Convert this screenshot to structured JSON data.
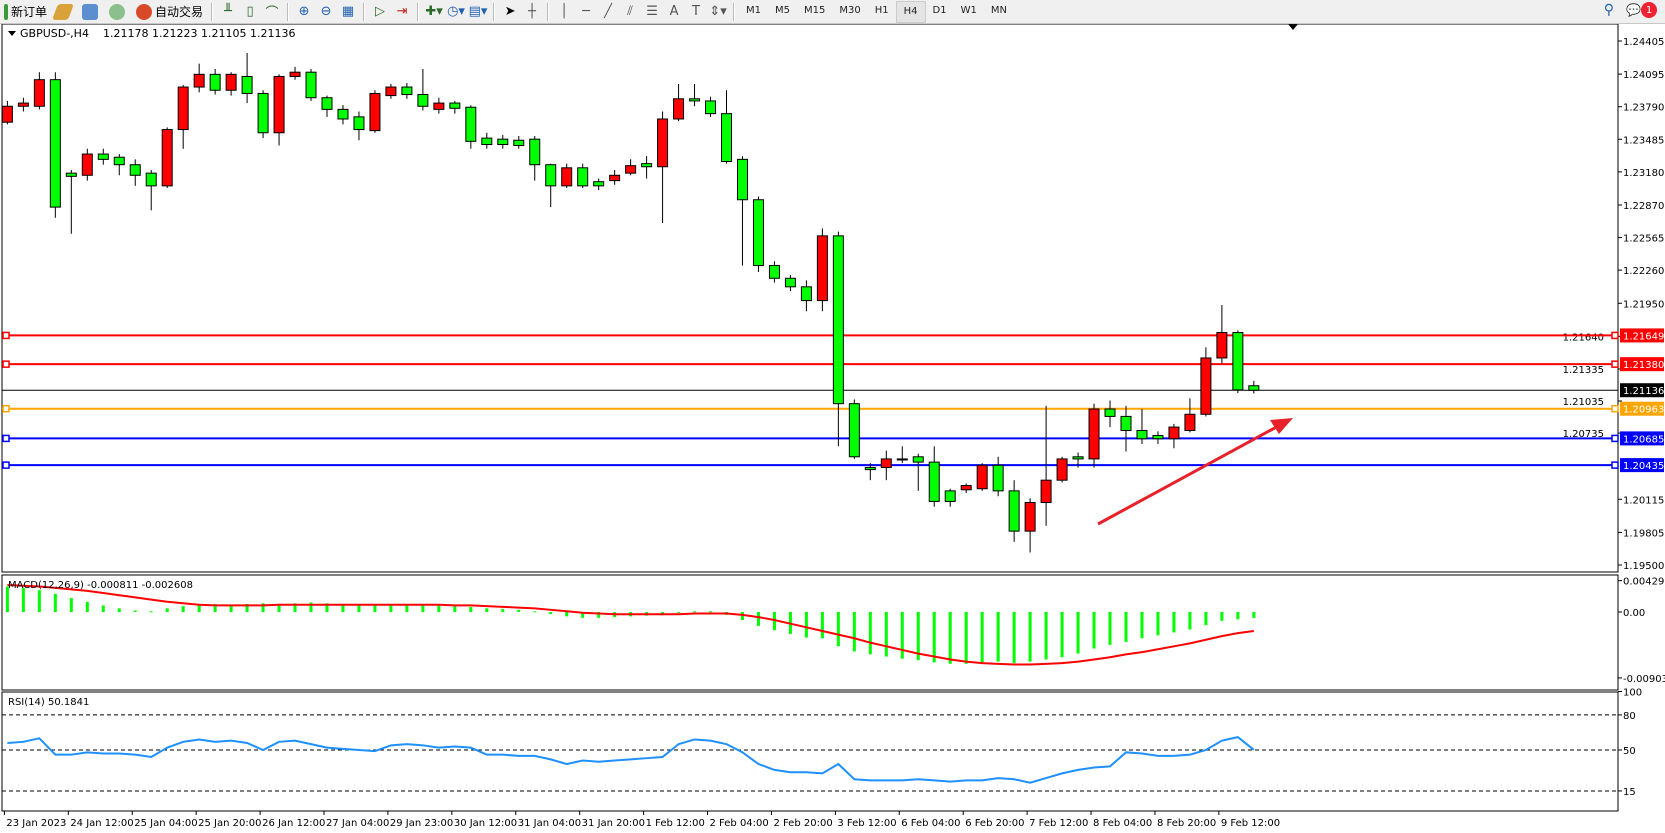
{
  "toolbar": {
    "new_order": "新订单",
    "auto_trading": "自动交易",
    "timeframes": [
      "M1",
      "M5",
      "M15",
      "M30",
      "H1",
      "H4",
      "D1",
      "W1",
      "MN"
    ],
    "active_timeframe": "H4",
    "notification_count": "1"
  },
  "chart_header": {
    "symbol": "GBPUSD-,H4",
    "ohlc": "1.21178 1.21223 1.21105 1.21136"
  },
  "chart_data": [
    {
      "type": "candlestick",
      "title": "GBPUSD-,H4  1.21178 1.21223 1.21105 1.21136",
      "up_color": "#ff0000",
      "down_color": "#00ff00",
      "ylim": [
        1.195,
        1.24405
      ],
      "y_ticks": [
        "1.24405",
        "1.24095",
        "1.23790",
        "1.23485",
        "1.23180",
        "1.22870",
        "1.22565",
        "1.22260",
        "1.21950",
        "1.21640",
        "1.21335",
        "1.21035",
        "1.20735",
        "1.20115",
        "1.19805",
        "1.19500"
      ],
      "x_tick_labels": [
        "23 Jan 2023",
        "24 Jan 12:00",
        "25 Jan 04:00",
        "25 Jan 20:00",
        "26 Jan 12:00",
        "27 Jan 04:00",
        "29 Jan 23:00",
        "30 Jan 12:00",
        "31 Jan 04:00",
        "31 Jan 20:00",
        "1 Feb 12:00",
        "2 Feb 04:00",
        "2 Feb 20:00",
        "3 Feb 12:00",
        "6 Feb 04:00",
        "6 Feb 20:00",
        "7 Feb 12:00",
        "8 Feb 04:00",
        "8 Feb 20:00",
        "9 Feb 12:00"
      ],
      "x_tick_every_n_candles": 4,
      "ohlc": [
        [
          1.23645,
          1.23844,
          1.23625,
          1.23794
        ],
        [
          1.23794,
          1.23874,
          1.23745,
          1.23824
        ],
        [
          1.23794,
          1.24113,
          1.23765,
          1.24043
        ],
        [
          1.24043,
          1.24113,
          1.2275,
          1.2285
        ],
        [
          1.23168,
          1.23198,
          1.22601,
          1.23138
        ],
        [
          1.23148,
          1.23397,
          1.23098,
          1.23347
        ],
        [
          1.23347,
          1.23397,
          1.23247,
          1.23297
        ],
        [
          1.23317,
          1.23347,
          1.23148,
          1.23247
        ],
        [
          1.23247,
          1.23297,
          1.23049,
          1.23148
        ],
        [
          1.23168,
          1.23198,
          1.2282,
          1.23049
        ],
        [
          1.23049,
          1.23596,
          1.23029,
          1.23576
        ],
        [
          1.23576,
          1.23994,
          1.23396,
          1.23974
        ],
        [
          1.23974,
          1.24193,
          1.23924,
          1.24093
        ],
        [
          1.24093,
          1.24143,
          1.23904,
          1.23944
        ],
        [
          1.23944,
          1.24113,
          1.23894,
          1.24093
        ],
        [
          1.24073,
          1.24293,
          1.23824,
          1.23914
        ],
        [
          1.23914,
          1.23944,
          1.23496,
          1.23546
        ],
        [
          1.23546,
          1.24093,
          1.23427,
          1.24073
        ],
        [
          1.24073,
          1.24163,
          1.24043,
          1.24113
        ],
        [
          1.24113,
          1.24143,
          1.23844,
          1.23874
        ],
        [
          1.23874,
          1.23894,
          1.23695,
          1.23765
        ],
        [
          1.23765,
          1.23805,
          1.23625,
          1.23675
        ],
        [
          1.23695,
          1.23745,
          1.23476,
          1.23576
        ],
        [
          1.23566,
          1.23944,
          1.23546,
          1.23914
        ],
        [
          1.23894,
          1.24003,
          1.23864,
          1.23974
        ],
        [
          1.23974,
          1.24013,
          1.23864,
          1.23904
        ],
        [
          1.23904,
          1.24143,
          1.23755,
          1.23794
        ],
        [
          1.23765,
          1.23874,
          1.23725,
          1.23824
        ],
        [
          1.23824,
          1.23844,
          1.23725,
          1.23775
        ],
        [
          1.23785,
          1.23804,
          1.23397,
          1.23466
        ],
        [
          1.23496,
          1.23546,
          1.23397,
          1.23436
        ],
        [
          1.23486,
          1.23526,
          1.23397,
          1.23436
        ],
        [
          1.23476,
          1.23516,
          1.23397,
          1.23427
        ],
        [
          1.23486,
          1.23516,
          1.23098,
          1.23247
        ],
        [
          1.23247,
          1.23257,
          1.2285,
          1.23049
        ],
        [
          1.23049,
          1.23257,
          1.23029,
          1.23218
        ],
        [
          1.23218,
          1.23257,
          1.23029,
          1.23049
        ],
        [
          1.23088,
          1.23118,
          1.23009,
          1.23049
        ],
        [
          1.23098,
          1.23198,
          1.23059,
          1.23148
        ],
        [
          1.23168,
          1.23298,
          1.23148,
          1.23238
        ],
        [
          1.23257,
          1.23327,
          1.23118,
          1.23228
        ],
        [
          1.23228,
          1.23745,
          1.22701,
          1.23675
        ],
        [
          1.23675,
          1.24003,
          1.23655,
          1.23864
        ],
        [
          1.23864,
          1.24003,
          1.23794,
          1.23844
        ],
        [
          1.23844,
          1.23884,
          1.23695,
          1.23725
        ],
        [
          1.23725,
          1.23944,
          1.23257,
          1.23277
        ],
        [
          1.23297,
          1.23327,
          1.22303,
          1.22919
        ],
        [
          1.22919,
          1.22949,
          1.22243,
          1.22303
        ],
        [
          1.22303,
          1.22343,
          1.22144,
          1.22184
        ],
        [
          1.22184,
          1.22214,
          1.22064,
          1.22104
        ],
        [
          1.22104,
          1.22164,
          1.21875,
          1.21975
        ],
        [
          1.21975,
          1.22651,
          1.21875,
          1.22581
        ],
        [
          1.22581,
          1.22621,
          1.20611,
          1.2101
        ],
        [
          1.2101,
          1.2105,
          1.20493,
          1.20513
        ],
        [
          1.20413,
          1.20453,
          1.20294,
          1.20393
        ],
        [
          1.20413,
          1.20571,
          1.20294,
          1.20493
        ],
        [
          1.20493,
          1.20611,
          1.20453,
          1.20483
        ],
        [
          1.20513,
          1.20542,
          1.20194,
          1.20463
        ],
        [
          1.20463,
          1.20611,
          1.20045,
          1.20095
        ],
        [
          1.20194,
          1.20214,
          1.20045,
          1.20095
        ],
        [
          1.20204,
          1.20264,
          1.20174,
          1.20244
        ],
        [
          1.20214,
          1.20453,
          1.20194,
          1.20433
        ],
        [
          1.20433,
          1.20513,
          1.20144,
          1.20194
        ],
        [
          1.20194,
          1.20294,
          1.19717,
          1.19817
        ],
        [
          1.19817,
          1.20125,
          1.19617,
          1.20085
        ],
        [
          1.20085,
          1.2099,
          1.19867,
          1.20294
        ],
        [
          1.20294,
          1.20513,
          1.20274,
          1.20493
        ],
        [
          1.20513,
          1.20553,
          1.20413,
          1.20493
        ],
        [
          1.20493,
          1.2101,
          1.20413,
          1.2096
        ],
        [
          1.2096,
          1.2104,
          1.20791,
          1.20891
        ],
        [
          1.20891,
          1.2099,
          1.20562,
          1.20759
        ],
        [
          1.20759,
          1.2096,
          1.20632,
          1.20682
        ],
        [
          1.20712,
          1.20751,
          1.20632,
          1.20682
        ],
        [
          1.20682,
          1.20821,
          1.20593,
          1.20791
        ],
        [
          1.20759,
          1.2106,
          1.20741,
          1.20911
        ],
        [
          1.20911,
          1.21538,
          1.20891,
          1.21438
        ],
        [
          1.21438,
          1.21934,
          1.21389,
          1.21676
        ],
        [
          1.21676,
          1.21696,
          1.21109,
          1.21139
        ],
        [
          1.21178,
          1.21223,
          1.21105,
          1.21136
        ]
      ],
      "current_price": {
        "value": 1.21136,
        "label": "1.21136",
        "color": "#000000"
      },
      "horizontal_lines": [
        {
          "value": 1.21649,
          "label": "1.21649",
          "color": "#ff0000"
        },
        {
          "value": 1.2138,
          "label": "1.21380",
          "color": "#ff0000"
        },
        {
          "value": 1.20963,
          "label": "1.20963",
          "color": "#ffa500"
        },
        {
          "value": 1.20685,
          "label": "1.20685",
          "color": "#0000ff"
        },
        {
          "value": 1.20435,
          "label": "1.20435",
          "color": "#0000ff"
        }
      ],
      "annotation": {
        "type": "arrow",
        "color": "#e8202a",
        "direction": "up-right"
      }
    },
    {
      "type": "bar+line",
      "title": "MACD(12,26,9) -0.000811 -0.002608",
      "ylim": [
        -0.009034,
        0.00429
      ],
      "y_ticks": [
        "0.00429",
        "0.00",
        "-0.009034"
      ],
      "histogram_color": "#00ff00",
      "signal_color": "#ff0000",
      "histogram": [
        0.0035,
        0.0033,
        0.003,
        0.0025,
        0.0019,
        0.0014,
        0.0009,
        0.0005,
        0.0002,
        0.0001,
        0.0005,
        0.0008,
        0.001,
        0.0011,
        0.001,
        0.0011,
        0.0012,
        0.0011,
        0.0012,
        0.0013,
        0.0012,
        0.0011,
        0.001,
        0.001,
        0.0011,
        0.0011,
        0.001,
        0.0009,
        0.0008,
        0.0007,
        0.0005,
        0.0004,
        0.0003,
        0.0001,
        -0.0003,
        -0.0006,
        -0.0008,
        -0.0008,
        -0.0007,
        -0.0006,
        -0.0005,
        -0.0003,
        -0.0001,
        0.0001,
        0.0001,
        -0.0004,
        -0.0011,
        -0.0019,
        -0.0025,
        -0.003,
        -0.0035,
        -0.0036,
        -0.0047,
        -0.0054,
        -0.0058,
        -0.0061,
        -0.0064,
        -0.0066,
        -0.0069,
        -0.0071,
        -0.0071,
        -0.007,
        -0.0068,
        -0.007,
        -0.0068,
        -0.0065,
        -0.0062,
        -0.0057,
        -0.005,
        -0.0045,
        -0.0041,
        -0.0036,
        -0.0032,
        -0.0028,
        -0.0024,
        -0.0018,
        -0.0012,
        -0.001,
        -0.000811
      ],
      "signal": [
        0.0037,
        0.0036,
        0.0035,
        0.0033,
        0.0031,
        0.0029,
        0.0026,
        0.0023,
        0.002,
        0.0017,
        0.0014,
        0.0012,
        0.001,
        0.0009,
        0.0009,
        0.0009,
        0.0009,
        0.001,
        0.001,
        0.001,
        0.001,
        0.001,
        0.001,
        0.001,
        0.001,
        0.001,
        0.001,
        0.001,
        0.0009,
        0.0009,
        0.0008,
        0.0007,
        0.0006,
        0.0005,
        0.0003,
        0.0001,
        -0.0001,
        -0.0002,
        -0.0003,
        -0.0003,
        -0.0003,
        -0.0003,
        -0.0003,
        -0.0002,
        -0.0002,
        -0.0002,
        -0.0004,
        -0.0007,
        -0.0011,
        -0.0016,
        -0.0021,
        -0.0026,
        -0.0031,
        -0.0036,
        -0.0042,
        -0.0047,
        -0.0052,
        -0.0057,
        -0.0061,
        -0.0065,
        -0.0068,
        -0.007,
        -0.0071,
        -0.0072,
        -0.0072,
        -0.0071,
        -0.007,
        -0.0068,
        -0.0065,
        -0.0062,
        -0.0058,
        -0.0055,
        -0.0051,
        -0.0047,
        -0.0043,
        -0.0038,
        -0.0033,
        -0.0029,
        -0.002608
      ]
    },
    {
      "type": "line",
      "title": "RSI(14) 50.1841",
      "ylim": [
        0,
        100
      ],
      "y_ticks": [
        "100",
        "80",
        "50",
        "15"
      ],
      "levels": [
        80,
        50,
        15
      ],
      "color": "#1e90ff",
      "values": [
        56,
        57,
        60,
        46,
        46,
        48,
        47,
        47,
        46,
        44,
        52,
        57,
        59,
        57,
        58,
        56,
        50,
        57,
        58,
        55,
        52,
        51,
        50,
        49,
        54,
        55,
        54,
        52,
        53,
        52,
        46,
        46,
        45,
        45,
        42,
        38,
        41,
        40,
        41,
        42,
        43,
        44,
        55,
        59,
        58,
        55,
        48,
        38,
        33,
        31,
        31,
        30,
        38,
        25,
        24,
        24,
        24,
        25,
        24,
        23,
        24,
        24,
        26,
        25,
        22,
        26,
        30,
        33,
        35,
        36,
        48,
        47,
        45,
        45,
        46,
        50,
        58,
        61,
        50.1841
      ]
    }
  ]
}
